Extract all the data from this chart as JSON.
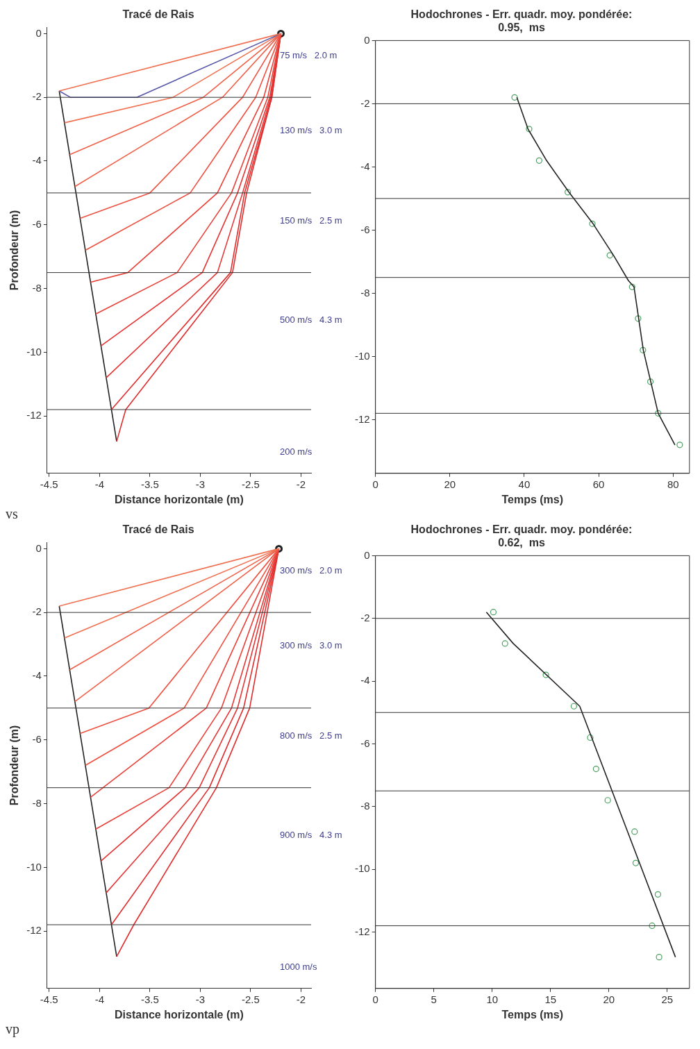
{
  "chart_data": [
    {
      "type": "line",
      "title": "Tracé de Rais",
      "xlabel": "Distance horizontale (m)",
      "ylabel": "Profondeur (m)",
      "xlim": [
        -4.52,
        -1.9
      ],
      "ylim": [
        -13.8,
        0.2
      ],
      "xticks": [
        -4.5,
        -4,
        -3.5,
        -3,
        -2.5,
        -2
      ],
      "yticks": [
        0,
        -2,
        -4,
        -6,
        -8,
        -10,
        -12
      ],
      "grid": false,
      "legend": false,
      "ref_lines": [
        {
          "axis": "y",
          "value": -2,
          "color": "#333333"
        },
        {
          "axis": "y",
          "value": -5,
          "color": "#333333"
        },
        {
          "axis": "y",
          "value": -7.5,
          "color": "#333333"
        },
        {
          "axis": "y",
          "value": -11.8,
          "color": "#333333"
        }
      ],
      "annotations": [
        "75 m/s   2.0 m",
        "130 m/s   3.0 m",
        "150 m/s   2.5 m",
        "500 m/s   4.3 m",
        "200 m/s",
        "vs"
      ],
      "series": [
        {
          "type": "line",
          "color": "#f07050",
          "x": [
            -2.2,
            -4.4
          ],
          "values": [
            0,
            -1.8
          ]
        },
        {
          "type": "line",
          "color": "#5555aa",
          "x": [
            -2.2,
            -3.63,
            -4.29,
            -4.4
          ],
          "values": [
            0,
            -2,
            -2,
            -1.8
          ]
        },
        {
          "type": "line",
          "color": "#f07050",
          "x": [
            -2.2,
            -3.27,
            -4.348
          ],
          "values": [
            0,
            -2,
            -2.8
          ]
        },
        {
          "type": "line",
          "color": "#f06048",
          "x": [
            -2.2,
            -2.97,
            -4.296
          ],
          "values": [
            0,
            -2,
            -3.8
          ]
        },
        {
          "type": "line",
          "color": "#f06048",
          "x": [
            -2.2,
            -2.78,
            -4.245
          ],
          "values": [
            0,
            -2,
            -4.8
          ]
        },
        {
          "type": "line",
          "color": "#ee5040",
          "x": [
            -2.2,
            -2.58,
            -3.5,
            -4.193
          ],
          "values": [
            0,
            -2,
            -5,
            -5.8
          ]
        },
        {
          "type": "line",
          "color": "#ee5040",
          "x": [
            -2.2,
            -2.45,
            -3.1,
            -4.141
          ],
          "values": [
            0,
            -2,
            -5,
            -6.8
          ]
        },
        {
          "type": "line",
          "color": "#e84038",
          "x": [
            -2.2,
            -2.37,
            -2.83,
            -3.72,
            -4.089
          ],
          "values": [
            0,
            -2,
            -5,
            -7.5,
            -7.8
          ]
        },
        {
          "type": "line",
          "color": "#e84038",
          "x": [
            -2.2,
            -2.33,
            -2.69,
            -3.23,
            -4.037
          ],
          "values": [
            0,
            -2,
            -5,
            -7.5,
            -8.8
          ]
        },
        {
          "type": "line",
          "color": "#e43434",
          "x": [
            -2.2,
            -2.31,
            -2.63,
            -2.98,
            -3.985
          ],
          "values": [
            0,
            -2,
            -5,
            -7.5,
            -9.8
          ]
        },
        {
          "type": "line",
          "color": "#e43434",
          "x": [
            -2.2,
            -2.3,
            -2.58,
            -2.83,
            -3.934
          ],
          "values": [
            0,
            -2,
            -5,
            -7.5,
            -10.8
          ]
        },
        {
          "type": "line",
          "color": "#e02c2c",
          "x": [
            -2.2,
            -2.29,
            -2.56,
            -2.7,
            -3.882
          ],
          "values": [
            0,
            -2,
            -5,
            -7.5,
            -11.8
          ]
        },
        {
          "type": "line",
          "color": "#e02c2c",
          "x": [
            -2.2,
            -2.29,
            -2.54,
            -2.68,
            -3.74,
            -3.83
          ],
          "values": [
            0,
            -2,
            -5,
            -7.5,
            -11.8,
            -12.8
          ]
        },
        {
          "type": "line",
          "color": "#222222",
          "x": [
            -4.4,
            -3.83
          ],
          "values": [
            -1.8,
            -12.8
          ]
        },
        {
          "type": "scatter",
          "color": "#222222",
          "marker": "circle",
          "x": [
            -2.2
          ],
          "values": [
            0
          ]
        }
      ]
    },
    {
      "type": "scatter",
      "title": "Hodochrones - Err. quadr. moy. pondérée:",
      "subtitle": "0.95,  ms",
      "xlabel": "Temps (ms)",
      "xlim": [
        0,
        84.4
      ],
      "ylim": [
        -13.7,
        0
      ],
      "xticks": [
        0,
        20,
        40,
        60,
        80
      ],
      "yticks": [
        0,
        -2,
        -4,
        -6,
        -8,
        -10,
        -12
      ],
      "grid": false,
      "legend": false,
      "marker": "circle",
      "ref_lines": [
        {
          "axis": "y",
          "value": -2,
          "color": "#333333"
        },
        {
          "axis": "y",
          "value": -5,
          "color": "#333333"
        },
        {
          "axis": "y",
          "value": -7.5,
          "color": "#333333"
        },
        {
          "axis": "y",
          "value": -11.8,
          "color": "#333333"
        }
      ],
      "series": [
        {
          "type": "line",
          "color": "#222222",
          "marker": "none",
          "x": [
            38,
            41,
            46,
            52,
            58.5,
            64,
            68,
            69.5,
            72,
            76,
            80.5
          ],
          "values": [
            -1.8,
            -2.8,
            -3.8,
            -4.8,
            -5.8,
            -6.8,
            -7.6,
            -7.8,
            -9.8,
            -11.8,
            -12.8
          ]
        },
        {
          "type": "scatter",
          "color": "#4aa060",
          "x": [
            37.4,
            41.3,
            44,
            51.7,
            58.3,
            63,
            69,
            70.6,
            71.9,
            73.9,
            76,
            81.8
          ],
          "values": [
            -1.8,
            -2.8,
            -3.8,
            -4.8,
            -5.8,
            -6.8,
            -7.8,
            -8.8,
            -9.8,
            -10.8,
            -11.8,
            -12.8
          ]
        }
      ]
    },
    {
      "type": "line",
      "title": "Tracé de Rais",
      "xlabel": "Distance horizontale (m)",
      "ylabel": "Profondeur (m)",
      "xlim": [
        -4.52,
        -1.9
      ],
      "ylim": [
        -13.8,
        0.2
      ],
      "xticks": [
        -4.5,
        -4,
        -3.5,
        -3,
        -2.5,
        -2
      ],
      "yticks": [
        0,
        -2,
        -4,
        -6,
        -8,
        -10,
        -12
      ],
      "grid": false,
      "legend": false,
      "ref_lines": [
        {
          "axis": "y",
          "value": -2,
          "color": "#333333"
        },
        {
          "axis": "y",
          "value": -5,
          "color": "#333333"
        },
        {
          "axis": "y",
          "value": -7.5,
          "color": "#333333"
        },
        {
          "axis": "y",
          "value": -11.8,
          "color": "#333333"
        }
      ],
      "annotations": [
        "300 m/s   2.0 m",
        "300 m/s   3.0 m",
        "800 m/s   2.5 m",
        "900 m/s   4.3 m",
        "1000 m/s",
        "vp"
      ],
      "series": [
        {
          "type": "line",
          "color": "#f07050",
          "x": [
            -2.22,
            -4.4
          ],
          "values": [
            0,
            -1.8
          ]
        },
        {
          "type": "line",
          "color": "#f07050",
          "x": [
            -2.22,
            -4.348
          ],
          "values": [
            0,
            -2.8
          ]
        },
        {
          "type": "line",
          "color": "#f06048",
          "x": [
            -2.22,
            -4.296
          ],
          "values": [
            0,
            -3.8
          ]
        },
        {
          "type": "line",
          "color": "#f06048",
          "x": [
            -2.22,
            -4.245
          ],
          "values": [
            0,
            -4.8
          ]
        },
        {
          "type": "line",
          "color": "#ee5040",
          "x": [
            -2.22,
            -3.51,
            -4.193
          ],
          "values": [
            0,
            -5,
            -5.8
          ]
        },
        {
          "type": "line",
          "color": "#ee5040",
          "x": [
            -2.22,
            -3.16,
            -4.141
          ],
          "values": [
            0,
            -5,
            -6.8
          ]
        },
        {
          "type": "line",
          "color": "#e84038",
          "x": [
            -2.22,
            -2.94,
            -4.089
          ],
          "values": [
            0,
            -5,
            -7.8
          ]
        },
        {
          "type": "line",
          "color": "#e84038",
          "x": [
            -2.22,
            -2.79,
            -3.31,
            -4.037
          ],
          "values": [
            0,
            -5,
            -7.5,
            -8.8
          ]
        },
        {
          "type": "line",
          "color": "#e43434",
          "x": [
            -2.22,
            -2.69,
            -3.15,
            -3.985
          ],
          "values": [
            0,
            -5,
            -7.5,
            -9.8
          ]
        },
        {
          "type": "line",
          "color": "#e43434",
          "x": [
            -2.22,
            -2.63,
            -3.01,
            -3.934
          ],
          "values": [
            0,
            -5,
            -7.5,
            -10.8
          ]
        },
        {
          "type": "line",
          "color": "#e02c2c",
          "x": [
            -2.22,
            -2.57,
            -2.91,
            -3.882
          ],
          "values": [
            0,
            -5,
            -7.5,
            -11.8
          ]
        },
        {
          "type": "line",
          "color": "#e02c2c",
          "x": [
            -2.22,
            -2.51,
            -2.84,
            -3.66,
            -3.83
          ],
          "values": [
            0,
            -5,
            -7.5,
            -11.8,
            -12.8
          ]
        },
        {
          "type": "line",
          "color": "#222222",
          "x": [
            -4.4,
            -3.83
          ],
          "values": [
            -1.8,
            -12.8
          ]
        },
        {
          "type": "scatter",
          "color": "#222222",
          "marker": "circle",
          "x": [
            -2.22
          ],
          "values": [
            0
          ]
        }
      ]
    },
    {
      "type": "scatter",
      "title": "Hodochrones - Err. quadr. moy. pondérée:",
      "subtitle": "0.62,  ms",
      "xlabel": "Temps (ms)",
      "xlim": [
        0,
        26.9
      ],
      "ylim": [
        -13.8,
        0
      ],
      "xticks": [
        0,
        5,
        10,
        15,
        20,
        25
      ],
      "yticks": [
        0,
        -2,
        -4,
        -6,
        -8,
        -10,
        -12
      ],
      "grid": false,
      "legend": false,
      "marker": "circle",
      "ref_lines": [
        {
          "axis": "y",
          "value": -2,
          "color": "#333333"
        },
        {
          "axis": "y",
          "value": -5,
          "color": "#333333"
        },
        {
          "axis": "y",
          "value": -7.5,
          "color": "#333333"
        },
        {
          "axis": "y",
          "value": -11.8,
          "color": "#333333"
        }
      ],
      "series": [
        {
          "type": "line",
          "color": "#222222",
          "marker": "none",
          "x": [
            9.5,
            11.8,
            17.5,
            25.7
          ],
          "values": [
            -1.8,
            -2.8,
            -4.8,
            -12.8
          ]
        },
        {
          "type": "scatter",
          "color": "#4aa060",
          "x": [
            10.1,
            11.1,
            14.6,
            17,
            18.4,
            18.9,
            19.9,
            22.2,
            22.3,
            24.2,
            23.7,
            24.3
          ],
          "values": [
            -1.8,
            -2.8,
            -3.8,
            -4.8,
            -5.8,
            -6.8,
            -7.8,
            -8.8,
            -9.8,
            -10.8,
            -11.8,
            -12.8
          ]
        }
      ]
    }
  ]
}
